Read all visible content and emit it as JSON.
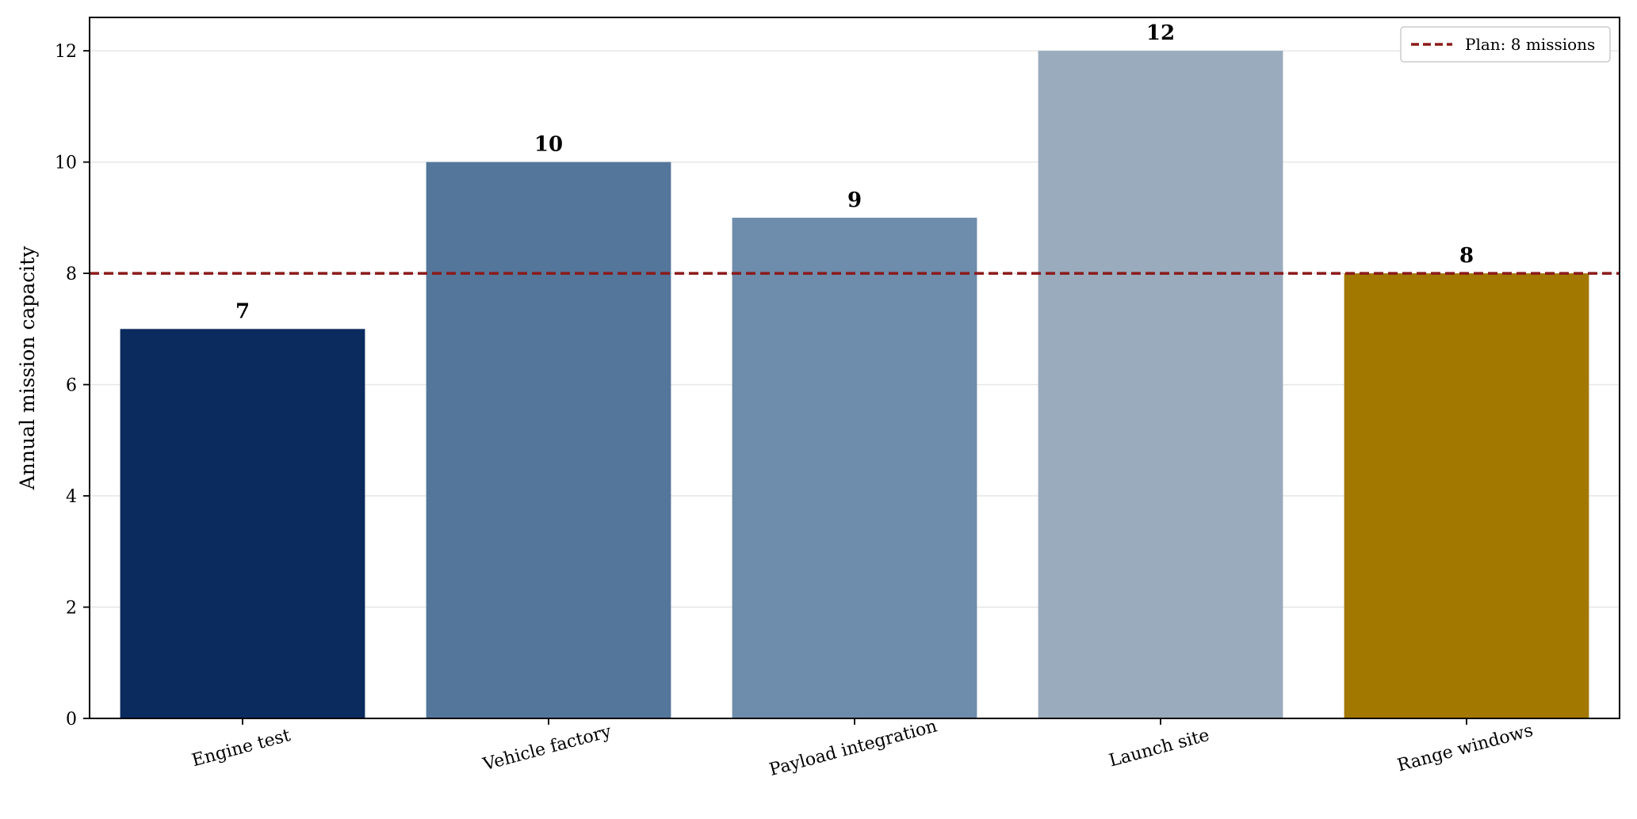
{
  "chart_data": {
    "type": "bar",
    "categories": [
      "Engine test",
      "Vehicle factory",
      "Payload integration",
      "Launch site",
      "Range windows"
    ],
    "values": [
      7,
      10,
      9,
      12,
      8
    ],
    "value_labels": [
      "7",
      "10",
      "9",
      "12",
      "8"
    ],
    "bar_colors": [
      "#0b2a5e",
      "#54769b",
      "#6e8cab",
      "#9aabbd",
      "#a37800"
    ],
    "title": "",
    "xlabel": "",
    "ylabel": "Annual mission capacity",
    "ylim": [
      0,
      12.6
    ],
    "yticks": [
      0,
      2,
      4,
      6,
      8,
      10,
      12
    ],
    "ytick_labels": [
      "0",
      "2",
      "4",
      "6",
      "8",
      "10",
      "12"
    ],
    "grid": "y",
    "reference_line": {
      "value": 8,
      "label": "Plan: 8 missions",
      "style": "dashed",
      "color": "#8b1a1a"
    },
    "legend": {
      "position": "top-right",
      "entries": [
        "Plan: 8 missions"
      ]
    }
  }
}
